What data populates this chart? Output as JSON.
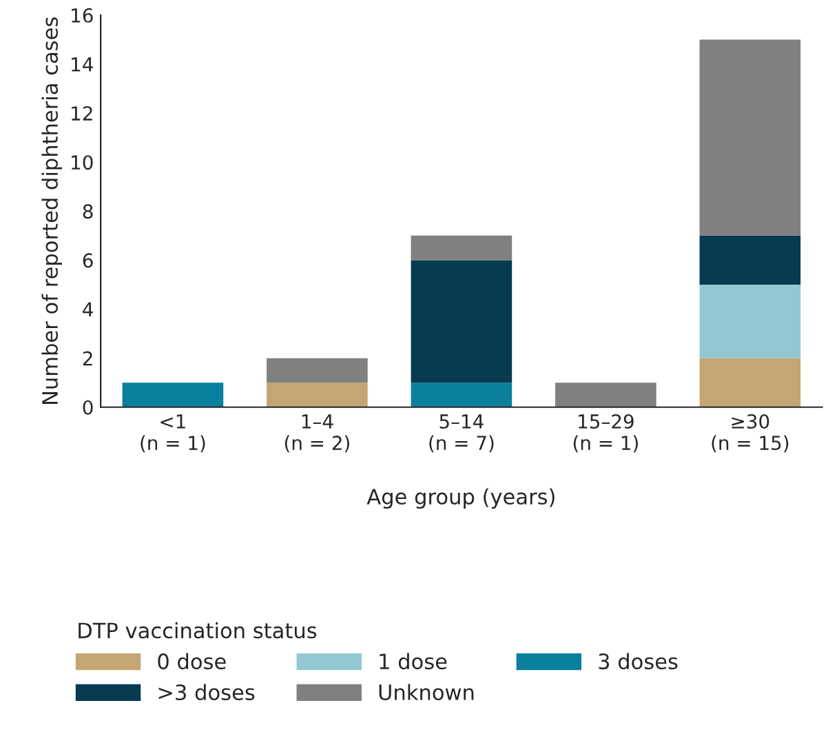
{
  "chart_data": {
    "type": "bar",
    "stacked": true,
    "ylabel": "Number of reported diphtheria cases",
    "xlabel": "Age group (years)",
    "legend_title": "DTP vaccination status",
    "legend": "bottom",
    "grid": false,
    "categories": [
      "<1\n(n = 1)",
      "1–4\n(n = 2)",
      "5–14\n(n = 7)",
      "15–29\n(n = 1)",
      "≥30\n(n = 15)"
    ],
    "ylim": [
      0,
      16
    ],
    "yticks": [
      0,
      2,
      4,
      6,
      8,
      10,
      12,
      14,
      16
    ],
    "series": [
      {
        "name": "0 dose",
        "color": "#c4a574",
        "values": [
          0,
          1,
          0,
          0,
          2
        ]
      },
      {
        "name": "1 dose",
        "color": "#93c8d3",
        "values": [
          0,
          0,
          0,
          0,
          3
        ]
      },
      {
        "name": "3 doses",
        "color": "#0a7f9e",
        "values": [
          1,
          0,
          1,
          0,
          0
        ]
      },
      {
        "name": ">3 doses",
        "color": "#063b52",
        "values": [
          0,
          0,
          5,
          0,
          2
        ]
      },
      {
        "name": "Unknown",
        "color": "#808080",
        "values": [
          0,
          1,
          1,
          1,
          8
        ]
      }
    ]
  }
}
